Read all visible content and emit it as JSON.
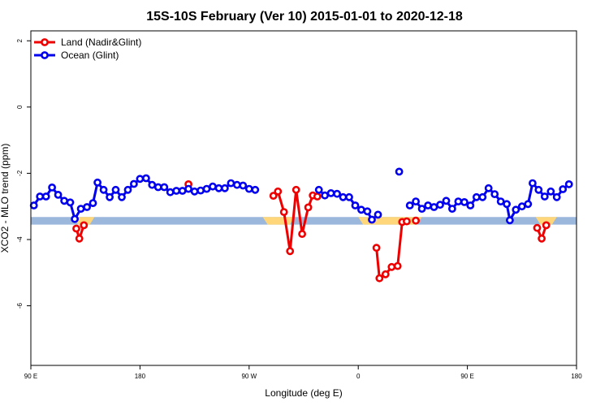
{
  "chart_data": {
    "type": "line",
    "title": "15S-10S February (Ver 10)   2015-01-01 to 2020-12-18",
    "xlabel": "Longitude (deg E)",
    "ylabel": "XCO2 - MLO trend (ppm)",
    "xlim": [
      90,
      450
    ],
    "ylim": [
      -7.8,
      2.3
    ],
    "x_ticks": [
      {
        "value": 90,
        "label": "90 E"
      },
      {
        "value": 162,
        "label": "180"
      },
      {
        "value": 234,
        "label": "90 W"
      },
      {
        "value": 306,
        "label": "0"
      },
      {
        "value": 378,
        "label": "90 E"
      },
      {
        "value": 450,
        "label": "180"
      }
    ],
    "y_ticks": [
      {
        "value": 2,
        "label": "2"
      },
      {
        "value": 0,
        "label": "0"
      },
      {
        "value": -2,
        "label": "-2"
      },
      {
        "value": -4,
        "label": "-4"
      },
      {
        "value": -6,
        "label": "-6"
      }
    ],
    "grid": false,
    "legend_position": "top-left",
    "terrain_band": {
      "y_top": -3.32,
      "y_bottom": -3.55,
      "ocean_color": "#9bb7dc",
      "land_color": "#ffd77a",
      "land_ranges": [
        [
          118,
          132
        ],
        [
          243,
          264
        ],
        [
          306,
          348
        ],
        [
          423,
          437
        ]
      ]
    },
    "series": [
      {
        "name": "Land (Nadir&Glint)",
        "color": "#ee0000",
        "segments": [
          [
            [
              120,
              -3.67
            ],
            [
              122,
              -3.97
            ],
            [
              125,
              -3.57
            ]
          ],
          [
            [
              194,
              -2.33
            ]
          ],
          [
            [
              250,
              -2.68
            ],
            [
              253,
              -2.55
            ],
            [
              257,
              -3.17
            ],
            [
              261,
              -4.35
            ],
            [
              265,
              -2.5
            ],
            [
              269,
              -3.83
            ],
            [
              273,
              -3.03
            ],
            [
              276,
              -2.67
            ],
            [
              279,
              -2.7
            ]
          ],
          [
            [
              318,
              -4.25
            ],
            [
              320,
              -5.17
            ],
            [
              324,
              -5.05
            ],
            [
              328,
              -4.83
            ],
            [
              332,
              -4.8
            ],
            [
              335,
              -3.47
            ],
            [
              338,
              -3.45
            ]
          ],
          [
            [
              344,
              -3.43
            ]
          ],
          [
            [
              424,
              -3.65
            ],
            [
              427,
              -3.97
            ],
            [
              430,
              -3.57
            ]
          ]
        ]
      },
      {
        "name": "Ocean (Glint)",
        "color": "#0000ee",
        "segments": [
          [
            [
              92,
              -2.97
            ],
            [
              96,
              -2.7
            ],
            [
              100,
              -2.7
            ],
            [
              104,
              -2.43
            ],
            [
              108,
              -2.65
            ],
            [
              112,
              -2.83
            ],
            [
              116,
              -2.88
            ],
            [
              119,
              -3.38
            ],
            [
              123,
              -3.07
            ],
            [
              127,
              -3.02
            ],
            [
              131,
              -2.9
            ],
            [
              134,
              -2.28
            ],
            [
              138,
              -2.5
            ],
            [
              142,
              -2.72
            ],
            [
              146,
              -2.5
            ],
            [
              150,
              -2.72
            ],
            [
              154,
              -2.5
            ],
            [
              158,
              -2.32
            ],
            [
              162,
              -2.17
            ],
            [
              166,
              -2.15
            ],
            [
              170,
              -2.35
            ],
            [
              174,
              -2.42
            ],
            [
              178,
              -2.42
            ],
            [
              182,
              -2.57
            ],
            [
              186,
              -2.53
            ],
            [
              190,
              -2.53
            ],
            [
              194,
              -2.47
            ],
            [
              198,
              -2.55
            ],
            [
              202,
              -2.52
            ],
            [
              206,
              -2.47
            ],
            [
              210,
              -2.4
            ],
            [
              214,
              -2.45
            ],
            [
              218,
              -2.45
            ],
            [
              222,
              -2.3
            ],
            [
              226,
              -2.35
            ],
            [
              230,
              -2.37
            ],
            [
              234,
              -2.47
            ],
            [
              238,
              -2.5
            ]
          ],
          [
            [
              280,
              -2.5
            ],
            [
              284,
              -2.67
            ],
            [
              288,
              -2.6
            ],
            [
              292,
              -2.62
            ],
            [
              296,
              -2.72
            ],
            [
              300,
              -2.72
            ],
            [
              304,
              -2.97
            ],
            [
              308,
              -3.1
            ],
            [
              312,
              -3.15
            ],
            [
              315,
              -3.4
            ],
            [
              319,
              -3.25
            ]
          ],
          [
            [
              333,
              -1.95
            ]
          ],
          [
            [
              340,
              -2.97
            ],
            [
              344,
              -2.85
            ],
            [
              348,
              -3.07
            ],
            [
              352,
              -2.97
            ],
            [
              356,
              -3.02
            ],
            [
              360,
              -2.95
            ],
            [
              364,
              -2.83
            ],
            [
              368,
              -3.07
            ],
            [
              372,
              -2.85
            ],
            [
              376,
              -2.87
            ],
            [
              380,
              -2.97
            ],
            [
              384,
              -2.72
            ],
            [
              388,
              -2.72
            ],
            [
              392,
              -2.45
            ],
            [
              396,
              -2.63
            ],
            [
              400,
              -2.85
            ],
            [
              404,
              -2.93
            ],
            [
              406,
              -3.42
            ],
            [
              410,
              -3.1
            ],
            [
              414,
              -3.0
            ],
            [
              418,
              -2.93
            ],
            [
              421,
              -2.3
            ],
            [
              425,
              -2.5
            ],
            [
              429,
              -2.7
            ],
            [
              433,
              -2.55
            ],
            [
              437,
              -2.72
            ],
            [
              441,
              -2.48
            ],
            [
              445,
              -2.33
            ]
          ]
        ]
      }
    ]
  }
}
